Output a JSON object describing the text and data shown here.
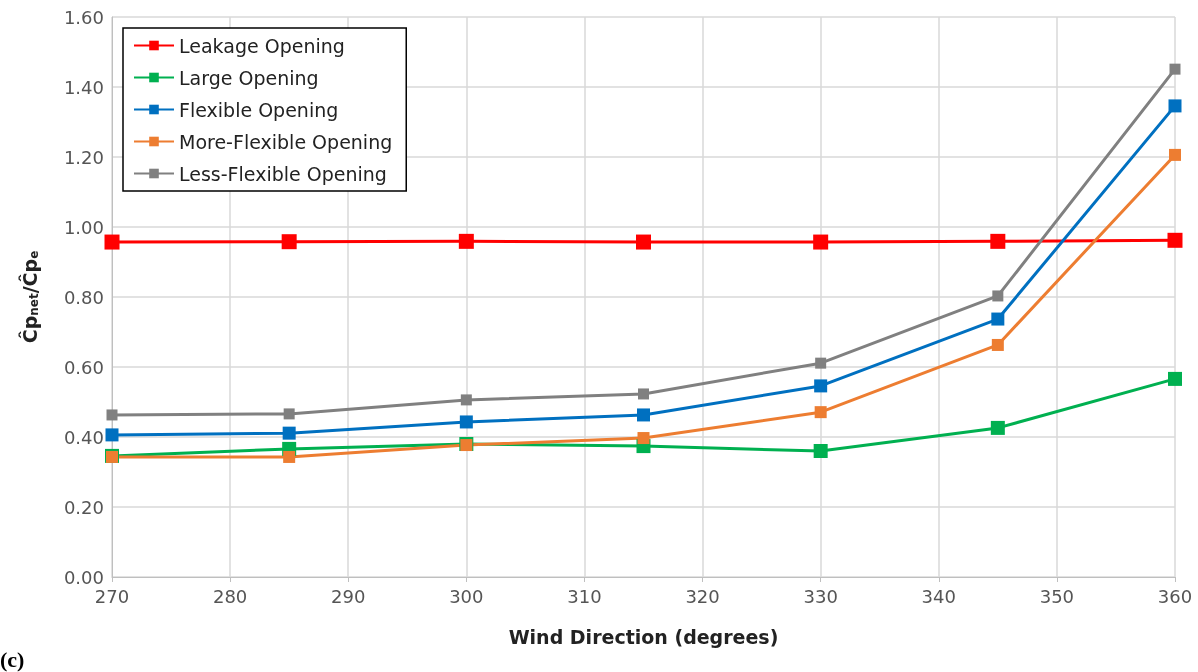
{
  "chart_data": {
    "type": "line",
    "xlabel": "Wind Direction (degrees)",
    "ylabel": "Ĉp$_{net}$/Ĉp$_{e}$",
    "annotations": [
      "(c)"
    ],
    "x": [
      270,
      285,
      300,
      315,
      330,
      345,
      360
    ],
    "series": [
      {
        "name": "Leakage Opening",
        "color": "#ff0000",
        "values": [
          0.957,
          0.958,
          0.959,
          0.957,
          0.957,
          0.959,
          0.962
        ]
      },
      {
        "name": "Large Opening",
        "color": "#00b050",
        "values": [
          0.346,
          0.366,
          0.38,
          0.374,
          0.36,
          0.426,
          0.566
        ]
      },
      {
        "name": "Flexible Opening",
        "color": "#0070c0",
        "values": [
          0.406,
          0.411,
          0.443,
          0.463,
          0.546,
          0.737,
          1.346
        ]
      },
      {
        "name": "More-Flexible Opening",
        "color": "#ed7d31",
        "values": [
          0.343,
          0.343,
          0.377,
          0.397,
          0.471,
          0.663,
          1.206
        ]
      },
      {
        "name": "Less-Flexible Opening",
        "color": "#808080",
        "values": [
          0.463,
          0.466,
          0.506,
          0.523,
          0.611,
          0.803,
          1.451
        ]
      }
    ],
    "xlim": [
      270,
      360
    ],
    "xticks": [
      270,
      280,
      290,
      300,
      310,
      320,
      330,
      340,
      350,
      360
    ],
    "ylim": [
      0,
      1.6
    ],
    "yticks": [
      {
        "value": 0,
        "label": "0.00"
      },
      {
        "value": 0.2,
        "label": "0.20"
      },
      {
        "value": 0.4,
        "label": "0.40"
      },
      {
        "value": 0.6,
        "label": "0.60"
      },
      {
        "value": 0.8,
        "label": "0.80"
      },
      {
        "value": 1,
        "label": "1.00"
      },
      {
        "value": 1.2,
        "label": "1.20"
      },
      {
        "value": 1.4,
        "label": "1.40"
      },
      {
        "value": 1.6,
        "label": "1.60"
      }
    ],
    "grid": true,
    "legend": "top left",
    "marker": "square",
    "line_style": "solid"
  }
}
